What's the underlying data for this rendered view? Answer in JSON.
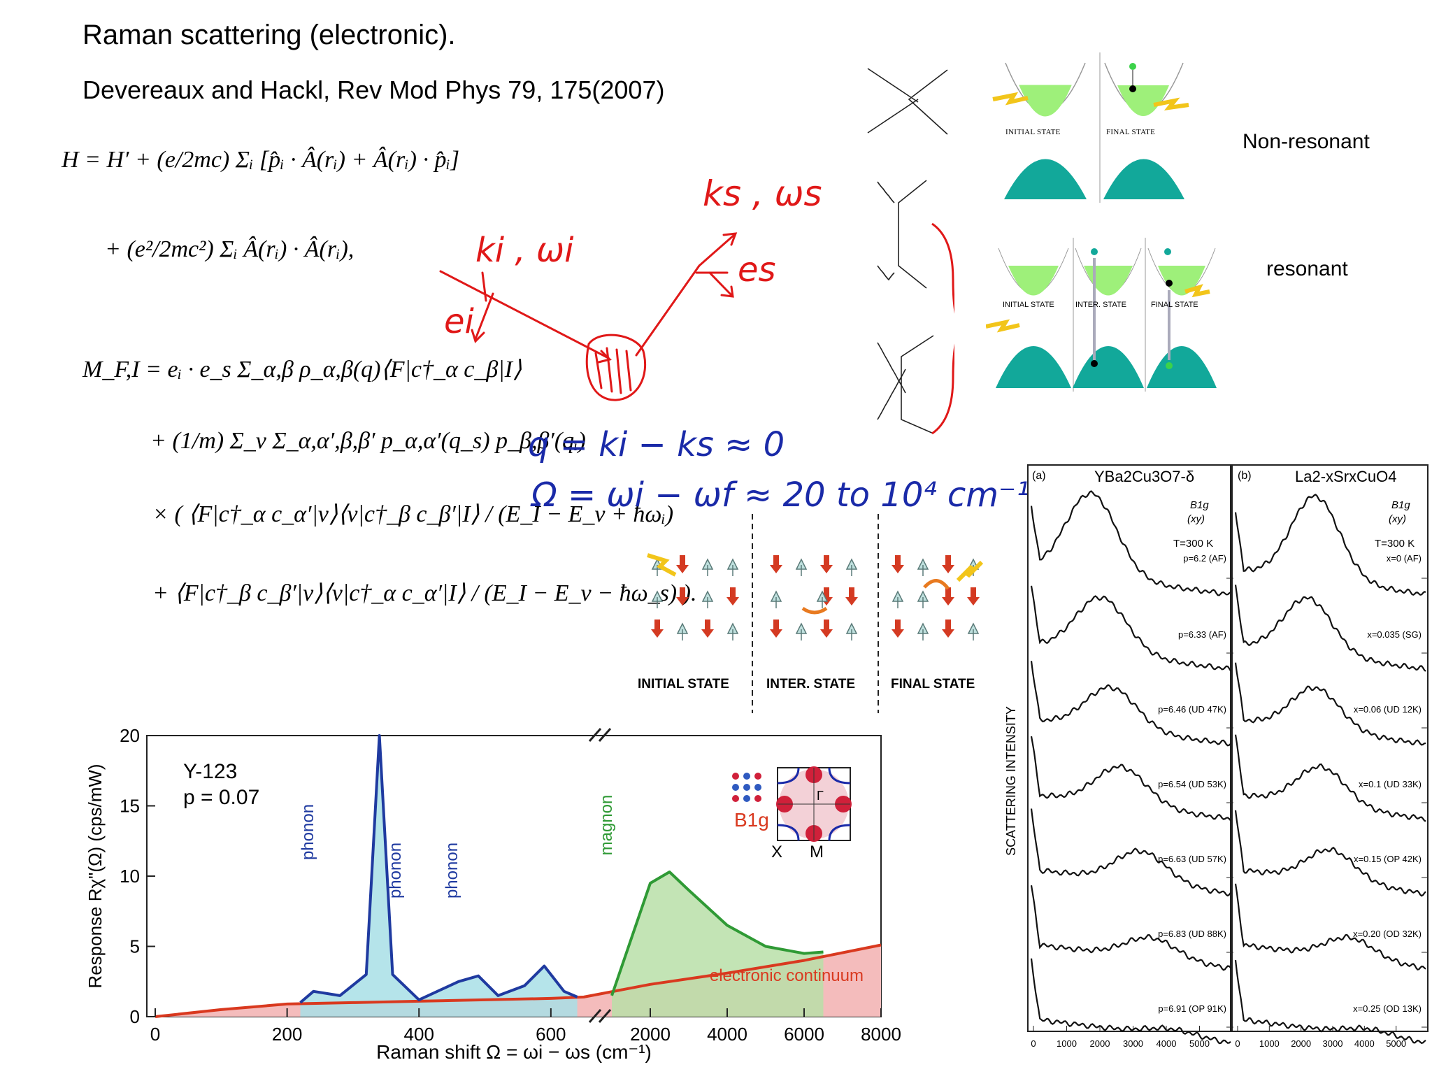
{
  "header": {
    "title": "Raman scattering (electronic).",
    "reference": "Devereaux and Hackl, Rev Mod Phys 79, 175(2007)"
  },
  "equations": {
    "h_line1": "H = H′ + (e/2mc) Σᵢ [p̂ᵢ · Â(rᵢ) + Â(rᵢ) · p̂ᵢ]",
    "h_line2": "+ (e²/2mc²) Σᵢ Â(rᵢ) · Â(rᵢ),",
    "m_line1": "M_F,I = eᵢ · e_s Σ_α,β ρ_α,β(q)⟨F|c†_α c_β|I⟩",
    "m_line2": "+ (1/m) Σ_ν Σ_α,α′,β,β′ p_α,α′(q_s) p_β,β′(qᵢ)",
    "m_line3": "× ( ⟨F|c†_α c_α′|ν⟩⟨ν|c†_β c_β′|I⟩ / (E_I − E_ν + ħωᵢ)",
    "m_line4": "+ ⟨F|c†_β c_β′|ν⟩⟨ν|c†_α c_α′|I⟩ / (E_I − E_ν − ħω_s) ).",
    "m_subscript1": "α,β",
    "m_subscript2": "ν   α,α′,β,β′"
  },
  "annotations": {
    "ks_ws": "ks , ωs",
    "ki_wi": "ki , ωi",
    "es": "es",
    "ei": "ei",
    "q_eq": "q = ki − ks ≈ 0",
    "omega_eq": "Ω = ωi − ωf ≈ 20 to 10⁴ cm⁻¹"
  },
  "band_diagrams": {
    "non_resonant": "Non-resonant",
    "resonant": "resonant",
    "initial_state": "INITIAL STATE",
    "final_state": "FINAL STATE",
    "inter_state": "INTER. STATE"
  },
  "spin_states": {
    "initial": "INITIAL STATE",
    "inter": "INTER. STATE",
    "final": "FINAL STATE"
  },
  "colors": {
    "electron": "#9ef07a",
    "hole_band": "#12a89a",
    "annot_red": "#e01818",
    "annot_blue": "#1a2aa8",
    "phonon_blue": "#1f3aa0",
    "magnon_green": "#2f9a35",
    "continuum_red": "#d9391f",
    "continuum_fill": "#f4bcbc",
    "phonon_fill": "#a8dfe6",
    "magnon_fill": "#b8dfa8"
  },
  "chart_data": [
    {
      "type": "line",
      "sample": "Y-123",
      "doping": "p = 0.07",
      "xlabel": "Raman shift Ω = ωi − ωs (cm⁻¹)",
      "ylabel": "Response Rχ\"(Ω) (cps/mW)",
      "ylim": [
        0,
        20
      ],
      "yticks": [
        0,
        5,
        10,
        15,
        20
      ],
      "xticks_low": [
        0,
        200,
        400,
        600
      ],
      "xticks_high": [
        2000,
        4000,
        6000,
        8000
      ],
      "axis_break": "between 650 and 1000",
      "labels": {
        "phonon1": "phonon",
        "phonon2": "phonon",
        "phonon3": "phonon",
        "magnon": "magnon",
        "continuum": "electronic continuum",
        "symmetry": "B1g",
        "inset_X": "X",
        "inset_M": "M",
        "inset_gamma": "Γ"
      },
      "series": [
        {
          "name": "electronic continuum",
          "x": [
            0,
            100,
            200,
            300,
            400,
            500,
            600,
            650,
            2000,
            4000,
            6000,
            8000
          ],
          "y": [
            0,
            0.5,
            0.9,
            1.0,
            1.1,
            1.2,
            1.3,
            1.4,
            2.3,
            3.1,
            4.0,
            5.1
          ]
        },
        {
          "name": "phonon",
          "x": [
            220,
            240,
            280,
            320,
            340,
            360,
            400,
            460,
            490,
            520,
            560,
            590,
            620,
            640
          ],
          "y": [
            1.0,
            1.8,
            1.5,
            3.0,
            20.0,
            3.0,
            1.2,
            2.5,
            2.9,
            1.5,
            2.2,
            3.6,
            1.8,
            1.4
          ]
        },
        {
          "name": "magnon",
          "x": [
            1000,
            1500,
            2000,
            2500,
            3000,
            4000,
            5000,
            6000,
            6500
          ],
          "y": [
            1.5,
            5.5,
            9.5,
            10.3,
            9.0,
            6.5,
            5.0,
            4.5,
            4.6
          ]
        }
      ]
    },
    {
      "type": "line",
      "panel": "(a)",
      "compound": "YBa2Cu3O7-δ",
      "symmetry": "B1g",
      "polarization": "(xy)",
      "temperature": "T=300 K",
      "ylabel": "SCATTERING INTENSITY",
      "xticks": [
        0,
        1000,
        2000,
        3000,
        4000,
        5000
      ],
      "curves": [
        "p=6.2 (AF)",
        "p=6.33 (AF)",
        "p=6.46 (UD 47K)",
        "p=6.54 (UD 53K)",
        "p=6.63 (UD 57K)",
        "p=6.83 (UD 88K)",
        "p=6.91 (OP 91K)"
      ]
    },
    {
      "type": "line",
      "panel": "(b)",
      "compound": "La2-xSrxCuO4",
      "symmetry": "B1g",
      "polarization": "(xy)",
      "temperature": "T=300 K",
      "xticks": [
        0,
        1000,
        2000,
        3000,
        4000,
        5000
      ],
      "curves": [
        "x=0 (AF)",
        "x=0.035 (SG)",
        "x=0.06 (UD 12K)",
        "x=0.1 (UD 33K)",
        "x=0.15 (OP 42K)",
        "x=0.20 (OD 32K)",
        "x=0.25 (OD 13K)"
      ]
    }
  ]
}
